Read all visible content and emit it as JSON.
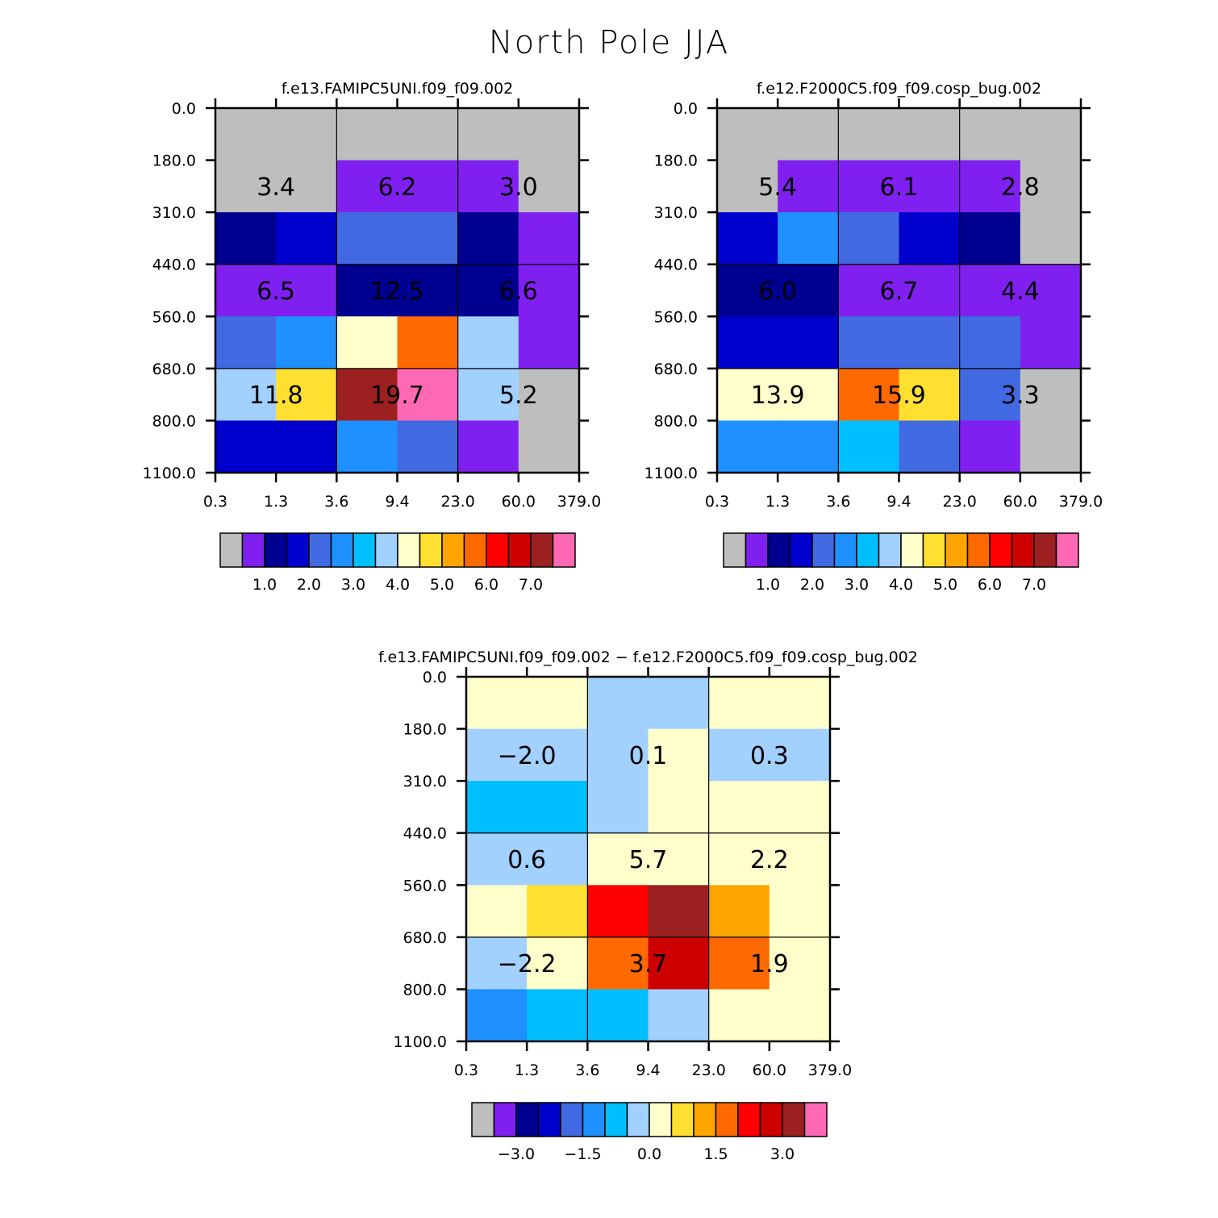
{
  "title": "North Pole JJA",
  "palette": {
    "n01": "#bebebe",
    "n02": "#8020f0",
    "n03": "#000090",
    "n04": "#0000cd",
    "n05": "#4169e1",
    "n06": "#1e90ff",
    "n07": "#00bfff",
    "n08": "#a2d0ff",
    "n09": "#ffffcc",
    "n10": "#ffe030",
    "n11": "#ffa500",
    "n12": "#ff6a00",
    "n13": "#ff0000",
    "n14": "#cd0000",
    "n15": "#9c2020",
    "n16": "#ff69b4"
  },
  "chart_data": [
    {
      "type": "heatmap",
      "title": "f.e13.FAMIPC5UNI.f09_f09.002",
      "x_ticks": [
        "0.3",
        "1.3",
        "3.6",
        "9.4",
        "23.0",
        "60.0",
        "379.0"
      ],
      "y_ticks": [
        "0.0",
        "180.0",
        "310.0",
        "440.0",
        "560.0",
        "680.0",
        "800.0",
        "1100.0"
      ],
      "cells": [
        [
          "n01",
          "n01",
          "n01",
          "n01",
          "n01",
          "n01"
        ],
        [
          "n01",
          "n01",
          "n02",
          "n02",
          "n02",
          "n01"
        ],
        [
          "n03",
          "n04",
          "n05",
          "n05",
          "n03",
          "n02"
        ],
        [
          "n02",
          "n02",
          "n03",
          "n03",
          "n03",
          "n02"
        ],
        [
          "n05",
          "n06",
          "n09",
          "n12",
          "n08",
          "n02"
        ],
        [
          "n08",
          "n10",
          "n15",
          "n16",
          "n08",
          "n01"
        ],
        [
          "n04",
          "n04",
          "n06",
          "n05",
          "n02",
          "n01"
        ]
      ],
      "box_values": [
        [
          "3.4",
          "6.2",
          "3.0"
        ],
        [
          "6.5",
          "12.5",
          "6.6"
        ],
        [
          "11.8",
          "19.7",
          "5.2"
        ]
      ],
      "colorbar_labels": [
        "1.0",
        "2.0",
        "3.0",
        "4.0",
        "5.0",
        "6.0",
        "7.0"
      ]
    },
    {
      "type": "heatmap",
      "title": "f.e12.F2000C5.f09_f09.cosp_bug.002",
      "x_ticks": [
        "0.3",
        "1.3",
        "3.6",
        "9.4",
        "23.0",
        "60.0",
        "379.0"
      ],
      "y_ticks": [
        "0.0",
        "180.0",
        "310.0",
        "440.0",
        "560.0",
        "680.0",
        "800.0",
        "1100.0"
      ],
      "cells": [
        [
          "n01",
          "n01",
          "n01",
          "n01",
          "n01",
          "n01"
        ],
        [
          "n01",
          "n02",
          "n02",
          "n02",
          "n02",
          "n01"
        ],
        [
          "n04",
          "n06",
          "n05",
          "n04",
          "n03",
          "n01"
        ],
        [
          "n03",
          "n03",
          "n02",
          "n02",
          "n02",
          "n02"
        ],
        [
          "n04",
          "n04",
          "n05",
          "n05",
          "n05",
          "n02"
        ],
        [
          "n09",
          "n09",
          "n12",
          "n10",
          "n05",
          "n01"
        ],
        [
          "n06",
          "n06",
          "n07",
          "n05",
          "n02",
          "n01"
        ]
      ],
      "box_values": [
        [
          "5.4",
          "6.1",
          "2.8"
        ],
        [
          "6.0",
          "6.7",
          "4.4"
        ],
        [
          "13.9",
          "15.9",
          "3.3"
        ]
      ],
      "colorbar_labels": [
        "1.0",
        "2.0",
        "3.0",
        "4.0",
        "5.0",
        "6.0",
        "7.0"
      ]
    },
    {
      "type": "heatmap",
      "title": "f.e13.FAMIPC5UNI.f09_f09.002 − f.e12.F2000C5.f09_f09.cosp_bug.002",
      "x_ticks": [
        "0.3",
        "1.3",
        "3.6",
        "9.4",
        "23.0",
        "60.0",
        "379.0"
      ],
      "y_ticks": [
        "0.0",
        "180.0",
        "310.0",
        "440.0",
        "560.0",
        "680.0",
        "800.0",
        "1100.0"
      ],
      "cells": [
        [
          "n09",
          "n09",
          "n08",
          "n08",
          "n09",
          "n09"
        ],
        [
          "n08",
          "n08",
          "n08",
          "n09",
          "n08",
          "n08"
        ],
        [
          "n07",
          "n07",
          "n08",
          "n09",
          "n09",
          "n09"
        ],
        [
          "n08",
          "n08",
          "n09",
          "n09",
          "n09",
          "n09"
        ],
        [
          "n09",
          "n10",
          "n13",
          "n15",
          "n11",
          "n09"
        ],
        [
          "n08",
          "n09",
          "n12",
          "n14",
          "n12",
          "n09"
        ],
        [
          "n06",
          "n07",
          "n07",
          "n08",
          "n09",
          "n09"
        ]
      ],
      "box_values": [
        [
          "−2.0",
          "0.1",
          "0.3"
        ],
        [
          "0.6",
          "5.7",
          "2.2"
        ],
        [
          "−2.2",
          "3.7",
          "1.9"
        ]
      ],
      "colorbar_labels": [
        "−3.0",
        "−1.5",
        "0.0",
        "1.5",
        "3.0"
      ]
    }
  ]
}
